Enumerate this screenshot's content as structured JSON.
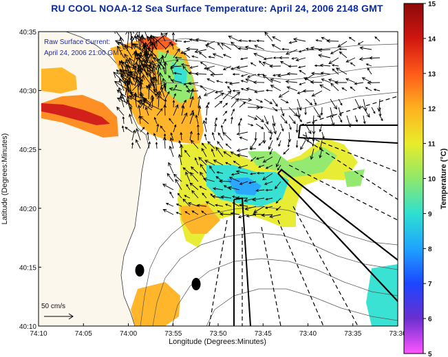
{
  "title": "RU COOL  NOAA-12  Sea Surface Temperature:  April 24, 2006 2148 GMT",
  "legend": {
    "current_label": "Raw Surface Current:",
    "current_time": "April 24, 2006 21:00 GMT",
    "scale_label": "50 cm/s"
  },
  "axes": {
    "xlabel": "Longitude (Degrees:Minutes)",
    "ylabel": "Latitude (Degrees:Minutes)",
    "x_ticks": [
      "74:10",
      "74:05",
      "74:00",
      "73:55",
      "73:50",
      "73:45",
      "73:40",
      "73:35",
      "73:30"
    ],
    "y_ticks": [
      "40:35",
      "40:30",
      "40:25",
      "40:20",
      "40:15",
      "40:10"
    ]
  },
  "colorbar": {
    "label": "Temperature (°C)",
    "ticks": [
      "15",
      "14",
      "13",
      "12",
      "11",
      "10",
      "9",
      "8",
      "7",
      "6",
      "5"
    ],
    "range": [
      5,
      15
    ],
    "colors": [
      "#ff55ff",
      "#6a2fd0",
      "#1c46ff",
      "#1fa3ff",
      "#2ee0d0",
      "#8fe86a",
      "#e8ec2a",
      "#ffb21f",
      "#ff5a1a",
      "#d0160f",
      "#8c0a0a"
    ]
  },
  "colors": {
    "land": "#fbf7ec",
    "title": "#0b2a9e",
    "info_text": "#1a2ab8"
  }
}
